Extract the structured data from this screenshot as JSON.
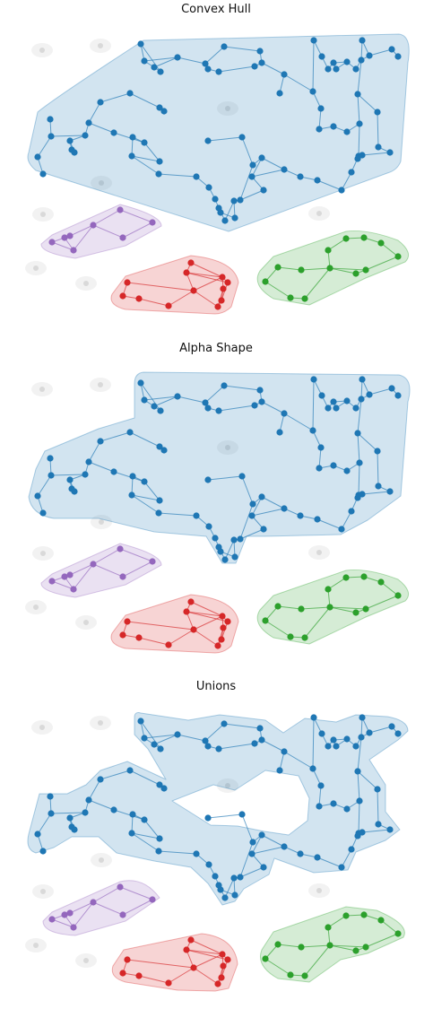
{
  "panels": [
    {
      "key": "convex_hull",
      "title": "Convex Hull"
    },
    {
      "key": "alpha_shape",
      "title": "Alpha Shape"
    },
    {
      "key": "unions",
      "title": "Unions"
    }
  ],
  "colors": {
    "blue": "#1f77b4",
    "purple": "#9467bd",
    "red": "#d62728",
    "green": "#2ca02c",
    "noise": "#cfcfcf"
  },
  "clusters": [
    {
      "name": "blue",
      "color": "#1f77b4"
    },
    {
      "name": "purple",
      "color": "#9467bd"
    },
    {
      "name": "red",
      "color": "#d62728"
    },
    {
      "name": "green",
      "color": "#2ca02c"
    }
  ],
  "noise_points": 9
}
